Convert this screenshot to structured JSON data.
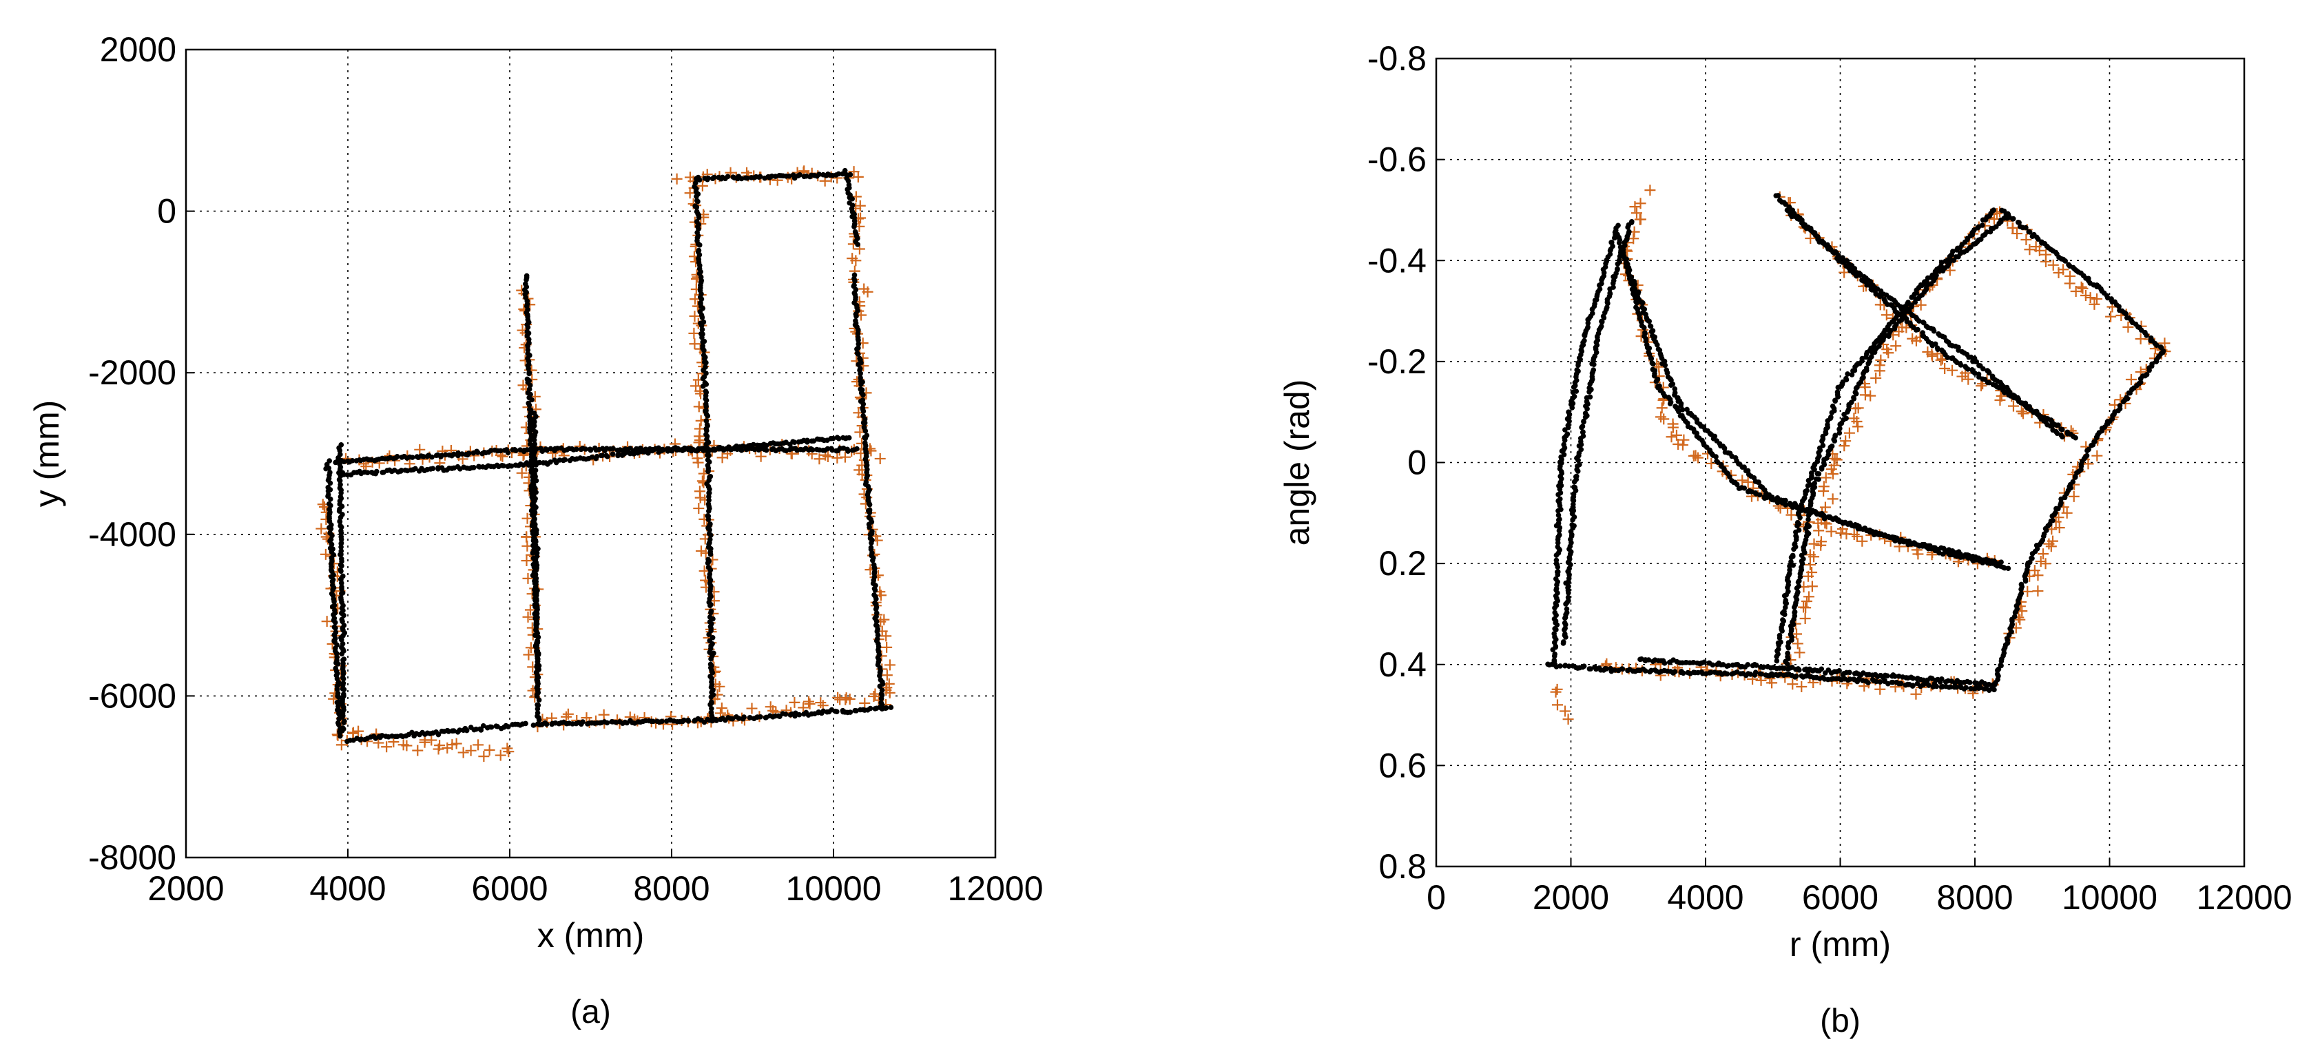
{
  "figure": {
    "panels": [
      {
        "caption": "(a)",
        "xlabel": "x (mm)",
        "ylabel": "y (mm)"
      },
      {
        "caption": "(b)",
        "xlabel": "r (mm)",
        "ylabel": "angle (rad)"
      }
    ]
  },
  "colors": {
    "measured_marker": "#D2691E",
    "estimate_marker": "#000000",
    "grid": "#000000",
    "background": "#ffffff"
  },
  "chart_data": [
    {
      "type": "scatter",
      "title": "",
      "caption": "(a)",
      "xlabel": "x (mm)",
      "ylabel": "y (mm)",
      "xlim": [
        2000,
        12000
      ],
      "ylim": [
        -8000,
        2000
      ],
      "xticks": [
        2000,
        4000,
        6000,
        8000,
        10000,
        12000
      ],
      "yticks": [
        2000,
        0,
        -2000,
        -4000,
        -6000,
        -8000
      ],
      "grid": true,
      "legend": "none",
      "series": [
        {
          "marker": "plus",
          "color": "#D2691E",
          "segments": [
            [
              [
                3650,
                -3600
              ],
              [
                3850,
                -4500
              ],
              [
                3850,
                -5500
              ],
              [
                3900,
                -6600
              ]
            ],
            [
              [
                3900,
                -6500
              ],
              [
                5000,
                -6600
              ],
              [
                6000,
                -6700
              ]
            ],
            [
              [
                3900,
                -3100
              ],
              [
                6000,
                -3000
              ],
              [
                8000,
                -2950
              ],
              [
                10600,
                -3000
              ]
            ],
            [
              [
                6200,
                -900
              ],
              [
                6250,
                -3000
              ],
              [
                6300,
                -6000
              ]
            ],
            [
              [
                8100,
                400
              ],
              [
                10300,
                450
              ]
            ],
            [
              [
                8300,
                300
              ],
              [
                8350,
                -3000
              ],
              [
                8550,
                -6200
              ]
            ],
            [
              [
                10300,
                200
              ],
              [
                10350,
                -3000
              ],
              [
                10700,
                -6100
              ]
            ],
            [
              [
                6300,
                -6300
              ],
              [
                8500,
                -6300
              ],
              [
                10600,
                -6000
              ]
            ]
          ]
        },
        {
          "marker": "dot",
          "color": "#000000",
          "segments": [
            [
              [
                3750,
                -3100
              ],
              [
                3900,
                -6500
              ]
            ],
            [
              [
                3900,
                -2900
              ],
              [
                3950,
                -6450
              ]
            ],
            [
              [
                4000,
                -6550
              ],
              [
                6200,
                -6350
              ]
            ],
            [
              [
                3850,
                -3100
              ],
              [
                6300,
                -2950
              ],
              [
                8400,
                -2950
              ],
              [
                10200,
                -2800
              ]
            ],
            [
              [
                3900,
                -3250
              ],
              [
                6000,
                -3150
              ],
              [
                8000,
                -2950
              ],
              [
                10300,
                -2950
              ]
            ],
            [
              [
                6200,
                -800
              ],
              [
                6350,
                -5950
              ]
            ],
            [
              [
                6300,
                -2500
              ],
              [
                6350,
                -6300
              ]
            ],
            [
              [
                8300,
                400
              ],
              [
                10200,
                450
              ]
            ],
            [
              [
                8300,
                350
              ],
              [
                8450,
                -3000
              ],
              [
                8500,
                -6300
              ]
            ],
            [
              [
                10150,
                500
              ],
              [
                10300,
                -400
              ]
            ],
            [
              [
                10250,
                -800
              ],
              [
                10400,
                -3000
              ],
              [
                10600,
                -6100
              ]
            ],
            [
              [
                6300,
                -6350
              ],
              [
                8500,
                -6300
              ],
              [
                10700,
                -6150
              ]
            ]
          ]
        }
      ]
    },
    {
      "type": "scatter",
      "title": "",
      "caption": "(b)",
      "xlabel": "r (mm)",
      "ylabel": "angle (rad)",
      "xlim": [
        0,
        12000
      ],
      "ylim": [
        -0.8,
        0.8
      ],
      "y_inverted": true,
      "xticks": [
        0,
        2000,
        4000,
        6000,
        8000,
        10000,
        12000
      ],
      "yticks": [
        -0.8,
        -0.6,
        -0.4,
        -0.2,
        0,
        0.2,
        0.4,
        0.6,
        0.8
      ],
      "ytick_labels": [
        "-0.8",
        "-0.6",
        "-0.4",
        "-0.2",
        "0",
        "0.2",
        "0.4",
        "0.6",
        "0.8"
      ],
      "grid": true,
      "legend": "none",
      "series": [
        {
          "marker": "plus",
          "color": "#D2691E",
          "segments": [
            [
              [
                1800,
                0.45
              ],
              [
                1950,
                0.5
              ]
            ],
            [
              [
                3100,
                -0.53
              ],
              [
                2800,
                -0.4
              ]
            ],
            [
              [
                2800,
                -0.42
              ],
              [
                3500,
                -0.05
              ],
              [
                5500,
                0.12
              ],
              [
                8300,
                0.2
              ]
            ],
            [
              [
                5100,
                -0.52
              ],
              [
                6000,
                -0.4
              ],
              [
                7500,
                -0.2
              ],
              [
                9500,
                -0.05
              ]
            ],
            [
              [
                5300,
                0.4
              ],
              [
                5900,
                0.0
              ],
              [
                7000,
                -0.3
              ],
              [
                8300,
                -0.5
              ]
            ],
            [
              [
                8300,
                -0.5
              ],
              [
                9500,
                -0.35
              ],
              [
                10800,
                -0.23
              ]
            ],
            [
              [
                10800,
                -0.23
              ],
              [
                9600,
                0.0
              ],
              [
                8500,
                0.35
              ]
            ],
            [
              [
                2500,
                0.4
              ],
              [
                5000,
                0.43
              ],
              [
                8300,
                0.45
              ]
            ]
          ]
        },
        {
          "marker": "dot",
          "color": "#000000",
          "segments": [
            [
              [
                1750,
                0.4
              ],
              [
                1850,
                0.0
              ],
              [
                2200,
                -0.25
              ],
              [
                2700,
                -0.47
              ]
            ],
            [
              [
                1900,
                0.36
              ],
              [
                2050,
                0.05
              ],
              [
                2400,
                -0.25
              ],
              [
                2900,
                -0.48
              ]
            ],
            [
              [
                2700,
                -0.45
              ],
              [
                3300,
                -0.15
              ],
              [
                4500,
                0.05
              ],
              [
                6500,
                0.14
              ],
              [
                8400,
                0.2
              ]
            ],
            [
              [
                2750,
                -0.42
              ],
              [
                3600,
                -0.12
              ],
              [
                5000,
                0.07
              ],
              [
                7000,
                0.16
              ],
              [
                8500,
                0.21
              ]
            ],
            [
              [
                5050,
                -0.53
              ],
              [
                6000,
                -0.4
              ],
              [
                7500,
                -0.22
              ],
              [
                9500,
                -0.05
              ]
            ],
            [
              [
                5200,
                -0.5
              ],
              [
                6500,
                -0.35
              ],
              [
                8000,
                -0.2
              ],
              [
                9300,
                -0.05
              ]
            ],
            [
              [
                5050,
                0.39
              ],
              [
                5400,
                0.1
              ],
              [
                6000,
                -0.15
              ],
              [
                7200,
                -0.35
              ],
              [
                8300,
                -0.5
              ]
            ],
            [
              [
                5200,
                0.4
              ],
              [
                5600,
                0.05
              ],
              [
                6500,
                -0.22
              ],
              [
                7500,
                -0.38
              ],
              [
                8500,
                -0.49
              ]
            ],
            [
              [
                8400,
                -0.5
              ],
              [
                9800,
                -0.35
              ],
              [
                10800,
                -0.22
              ]
            ],
            [
              [
                10800,
                -0.22
              ],
              [
                9800,
                -0.05
              ],
              [
                8800,
                0.2
              ],
              [
                8300,
                0.44
              ]
            ],
            [
              [
                1650,
                0.4
              ],
              [
                2500,
                0.41
              ],
              [
                5000,
                0.42
              ],
              [
                8300,
                0.45
              ]
            ],
            [
              [
                3000,
                0.39
              ],
              [
                5500,
                0.41
              ],
              [
                8300,
                0.44
              ]
            ]
          ]
        }
      ]
    }
  ]
}
